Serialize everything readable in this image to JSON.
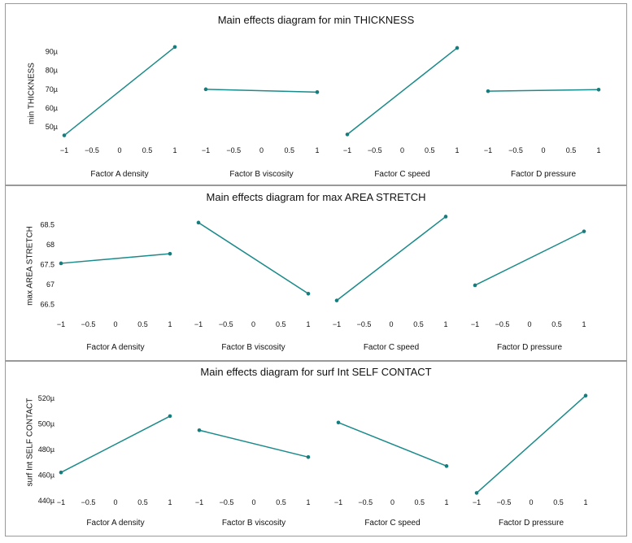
{
  "colors": {
    "line": "#1a8a8a",
    "point": "#167c7c",
    "border": "#999999"
  },
  "chart_data": [
    {
      "type": "line",
      "title": "Main effects diagram for min THICKNESS",
      "ylabel": "min THICKNESS",
      "yticks": [
        "50µ",
        "60µ",
        "70µ",
        "80µ",
        "90µ"
      ],
      "ytick_values": [
        50,
        60,
        70,
        80,
        90
      ],
      "ylim": [
        44,
        95
      ],
      "xticks": [
        "−1",
        "−0.5",
        "0",
        "0.5",
        "1"
      ],
      "xtick_values": [
        -1,
        -0.5,
        0,
        0.5,
        1
      ],
      "factors": [
        {
          "xlabel": "Factor A density",
          "x": [
            -1,
            1
          ],
          "y": [
            45.5,
            92.5
          ]
        },
        {
          "xlabel": "Factor B viscosity",
          "x": [
            -1,
            1
          ],
          "y": [
            70.0,
            68.5
          ]
        },
        {
          "xlabel": "Factor C speed",
          "x": [
            -1,
            1
          ],
          "y": [
            46.0,
            92.0
          ]
        },
        {
          "xlabel": "Factor D pressure",
          "x": [
            -1,
            1
          ],
          "y": [
            69.0,
            69.8
          ]
        }
      ]
    },
    {
      "type": "line",
      "title": "Main effects diagram for max AREA STRETCH",
      "ylabel": "max AREA STRETCH",
      "yticks": [
        "66.5",
        "67",
        "67.5",
        "68",
        "68.5"
      ],
      "ytick_values": [
        66.5,
        67,
        67.5,
        68,
        68.5
      ],
      "ylim": [
        66.45,
        68.75
      ],
      "xticks": [
        "−1",
        "−0.5",
        "0",
        "0.5",
        "1"
      ],
      "xtick_values": [
        -1,
        -0.5,
        0,
        0.5,
        1
      ],
      "factors": [
        {
          "xlabel": "Factor A density",
          "x": [
            -1,
            1
          ],
          "y": [
            67.53,
            67.77
          ]
        },
        {
          "xlabel": "Factor B viscosity",
          "x": [
            -1,
            1
          ],
          "y": [
            68.55,
            66.77
          ]
        },
        {
          "xlabel": "Factor C speed",
          "x": [
            -1,
            1
          ],
          "y": [
            66.6,
            68.7
          ]
        },
        {
          "xlabel": "Factor D pressure",
          "x": [
            -1,
            1
          ],
          "y": [
            66.98,
            68.33
          ]
        }
      ]
    },
    {
      "type": "line",
      "title": "Main effects diagram for surf Int SELF CONTACT",
      "ylabel": "surf Int SELF CONTACT",
      "yticks": [
        "440µ",
        "460µ",
        "480µ",
        "500µ",
        "520µ"
      ],
      "ytick_values": [
        440,
        460,
        480,
        500,
        520
      ],
      "ylim": [
        438,
        525
      ],
      "xticks": [
        "−1",
        "−0.5",
        "0",
        "0.5",
        "1"
      ],
      "xtick_values": [
        -1,
        -0.5,
        0,
        0.5,
        1
      ],
      "factors": [
        {
          "xlabel": "Factor A density",
          "x": [
            -1,
            1
          ],
          "y": [
            462,
            506
          ]
        },
        {
          "xlabel": "Factor B viscosity",
          "x": [
            -1,
            1
          ],
          "y": [
            495,
            474
          ]
        },
        {
          "xlabel": "Factor C speed",
          "x": [
            -1,
            1
          ],
          "y": [
            501,
            467
          ]
        },
        {
          "xlabel": "Factor D pressure",
          "x": [
            -1,
            1
          ],
          "y": [
            446,
            522
          ]
        }
      ]
    }
  ]
}
